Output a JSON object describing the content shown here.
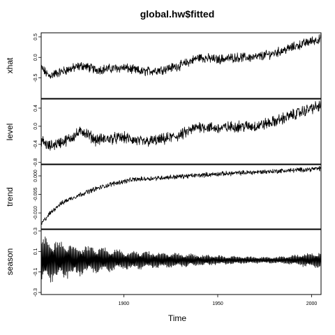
{
  "chart_data": {
    "type": "line",
    "title": "global.hw$fitted",
    "xlabel": "Time",
    "x_range": [
      1856,
      2005
    ],
    "x_ticks": [
      1900,
      1950,
      2000
    ],
    "x_tick_labels": [
      "1900",
      "1950",
      "2000"
    ],
    "panels": [
      {
        "ylabel": "xhat",
        "ylim": [
          -1.0,
          0.6
        ],
        "y_ticks": [
          -0.5,
          0.0,
          0.5
        ],
        "y_tick_labels": [
          "-0.5",
          "0.0",
          "0.5"
        ],
        "anchors": [
          [
            1856,
            -0.25
          ],
          [
            1860,
            -0.45
          ],
          [
            1870,
            -0.3
          ],
          [
            1878,
            -0.2
          ],
          [
            1885,
            -0.3
          ],
          [
            1900,
            -0.25
          ],
          [
            1910,
            -0.35
          ],
          [
            1920,
            -0.3
          ],
          [
            1930,
            -0.2
          ],
          [
            1940,
            0.0
          ],
          [
            1950,
            -0.05
          ],
          [
            1960,
            0.0
          ],
          [
            1970,
            0.0
          ],
          [
            1980,
            0.1
          ],
          [
            1990,
            0.25
          ],
          [
            2000,
            0.4
          ],
          [
            2005,
            0.45
          ]
        ],
        "noise": 0.09
      },
      {
        "ylabel": "level",
        "ylim": [
          -0.85,
          0.6
        ],
        "y_ticks": [
          -0.8,
          -0.4,
          0.0,
          0.4
        ],
        "y_tick_labels": [
          "-0.8",
          "-0.4",
          "0.0",
          "0.4"
        ],
        "anchors": [
          [
            1856,
            -0.3
          ],
          [
            1860,
            -0.45
          ],
          [
            1870,
            -0.3
          ],
          [
            1878,
            -0.1
          ],
          [
            1885,
            -0.3
          ],
          [
            1900,
            -0.25
          ],
          [
            1910,
            -0.35
          ],
          [
            1920,
            -0.3
          ],
          [
            1930,
            -0.2
          ],
          [
            1940,
            0.0
          ],
          [
            1950,
            -0.05
          ],
          [
            1960,
            0.0
          ],
          [
            1970,
            0.0
          ],
          [
            1980,
            0.1
          ],
          [
            1990,
            0.25
          ],
          [
            2000,
            0.4
          ],
          [
            2005,
            0.45
          ]
        ],
        "noise": 0.1
      },
      {
        "ylabel": "trend",
        "ylim": [
          -0.0145,
          0.0032
        ],
        "y_ticks": [
          -0.01,
          -0.005,
          0.0
        ],
        "y_tick_labels": [
          "-0.010",
          "-0.005",
          "0.000"
        ],
        "anchors": [
          [
            1856,
            -0.013
          ],
          [
            1860,
            -0.0105
          ],
          [
            1865,
            -0.008
          ],
          [
            1870,
            -0.0065
          ],
          [
            1877,
            -0.005
          ],
          [
            1885,
            -0.0035
          ],
          [
            1895,
            -0.002
          ],
          [
            1905,
            -0.001
          ],
          [
            1920,
            -0.0005
          ],
          [
            1935,
            0.0
          ],
          [
            1950,
            0.0005
          ],
          [
            1970,
            0.001
          ],
          [
            1990,
            0.0015
          ],
          [
            2005,
            0.002
          ]
        ],
        "noise": 0.0005
      },
      {
        "ylabel": "season",
        "ylim": [
          -0.32,
          0.32
        ],
        "y_ticks": [
          -0.3,
          -0.1,
          0.1,
          0.3
        ],
        "y_tick_labels": [
          "-0.3",
          "-0.1",
          "0.1",
          "0.3"
        ],
        "amplitude_anchors": [
          [
            1856,
            0.25
          ],
          [
            1865,
            0.2
          ],
          [
            1880,
            0.15
          ],
          [
            1900,
            0.1
          ],
          [
            1920,
            0.08
          ],
          [
            1940,
            0.06
          ],
          [
            1960,
            0.04
          ],
          [
            1980,
            0.03
          ],
          [
            1990,
            0.05
          ],
          [
            2000,
            0.08
          ],
          [
            2005,
            0.09
          ]
        ],
        "center": 0.05
      }
    ]
  }
}
